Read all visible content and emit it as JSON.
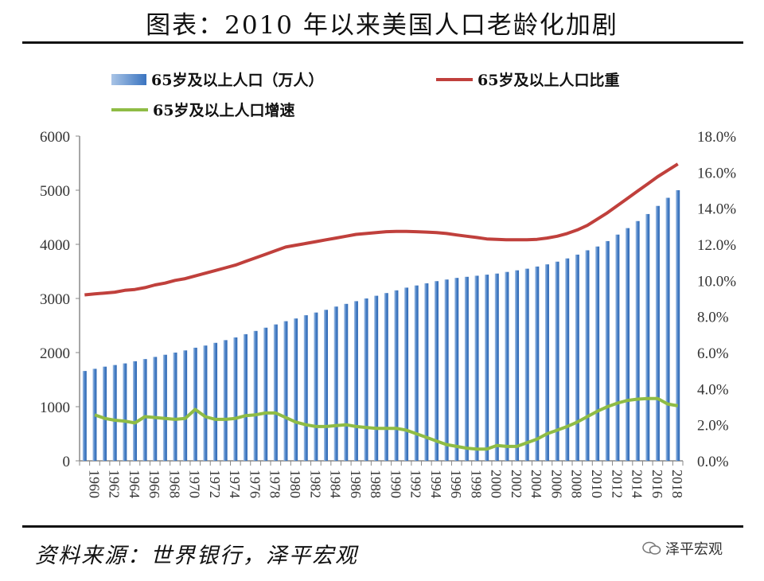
{
  "chart_data": {
    "type": "bar+line",
    "title": "图表：2010 年以来美国人口老龄化加剧",
    "legend": [
      "65岁及以上人口（万人）",
      "65岁及以上人口比重",
      "65岁及以上人口增速"
    ],
    "legend_placement": "top",
    "x": [
      1960,
      1961,
      1962,
      1963,
      1964,
      1965,
      1966,
      1967,
      1968,
      1969,
      1970,
      1971,
      1972,
      1973,
      1974,
      1975,
      1976,
      1977,
      1978,
      1979,
      1980,
      1981,
      1982,
      1983,
      1984,
      1985,
      1986,
      1987,
      1988,
      1989,
      1990,
      1991,
      1992,
      1993,
      1994,
      1995,
      1996,
      1997,
      1998,
      1999,
      2000,
      2001,
      2002,
      2003,
      2004,
      2005,
      2006,
      2007,
      2008,
      2009,
      2010,
      2011,
      2012,
      2013,
      2014,
      2015,
      2016,
      2017,
      2018,
      2019
    ],
    "x_tick_labels": [
      "1960",
      "1962",
      "1964",
      "1966",
      "1968",
      "1970",
      "1972",
      "1974",
      "1976",
      "1978",
      "1980",
      "1982",
      "1984",
      "1986",
      "1988",
      "1990",
      "1992",
      "1994",
      "1996",
      "1998",
      "2000",
      "2002",
      "2004",
      "2006",
      "2008",
      "2010",
      "2012",
      "2014",
      "2016",
      "2018"
    ],
    "left_axis": {
      "ylim": [
        0,
        6000
      ],
      "ticks": [
        "0",
        "1000",
        "2000",
        "3000",
        "4000",
        "5000",
        "6000"
      ]
    },
    "right_axis": {
      "ylim": [
        0,
        18
      ],
      "ticks": [
        "0.0%",
        "2.0%",
        "4.0%",
        "6.0%",
        "8.0%",
        "10.0%",
        "12.0%",
        "14.0%",
        "16.0%",
        "18.0%"
      ]
    },
    "series": [
      {
        "name": "65岁及以上人口（万人）",
        "type": "bar",
        "axis": "left",
        "color": "#4a82c8",
        "values": [
          1660,
          1700,
          1740,
          1770,
          1800,
          1840,
          1880,
          1920,
          1960,
          2000,
          2040,
          2090,
          2130,
          2180,
          2230,
          2280,
          2340,
          2400,
          2460,
          2520,
          2580,
          2630,
          2690,
          2740,
          2790,
          2850,
          2900,
          2950,
          3000,
          3050,
          3100,
          3150,
          3200,
          3240,
          3280,
          3320,
          3350,
          3380,
          3400,
          3420,
          3440,
          3460,
          3490,
          3520,
          3550,
          3590,
          3630,
          3680,
          3740,
          3810,
          3890,
          3960,
          4060,
          4180,
          4300,
          4430,
          4560,
          4710,
          4860,
          5000
        ]
      },
      {
        "name": "65岁及以上人口比重",
        "type": "line",
        "axis": "right",
        "color": "#c0403c",
        "values": [
          9.2,
          9.25,
          9.3,
          9.35,
          9.45,
          9.5,
          9.6,
          9.75,
          9.85,
          10.0,
          10.1,
          10.25,
          10.4,
          10.55,
          10.7,
          10.85,
          11.05,
          11.25,
          11.45,
          11.65,
          11.85,
          11.95,
          12.05,
          12.15,
          12.25,
          12.35,
          12.45,
          12.55,
          12.6,
          12.65,
          12.7,
          12.72,
          12.72,
          12.7,
          12.68,
          12.65,
          12.6,
          12.52,
          12.45,
          12.38,
          12.3,
          12.28,
          12.25,
          12.25,
          12.25,
          12.28,
          12.35,
          12.45,
          12.6,
          12.8,
          13.05,
          13.4,
          13.75,
          14.15,
          14.55,
          14.95,
          15.35,
          15.75,
          16.1,
          16.45
        ]
      },
      {
        "name": "65岁及以上人口增速",
        "type": "line",
        "axis": "right",
        "color": "#8fbc45",
        "values": [
          null,
          2.55,
          2.35,
          2.25,
          2.2,
          2.1,
          2.45,
          2.4,
          2.35,
          2.3,
          2.35,
          2.85,
          2.45,
          2.3,
          2.3,
          2.35,
          2.5,
          2.55,
          2.65,
          2.65,
          2.4,
          2.15,
          2.0,
          1.9,
          1.9,
          1.95,
          2.0,
          1.9,
          1.85,
          1.8,
          1.8,
          1.8,
          1.7,
          1.5,
          1.3,
          1.1,
          0.9,
          0.8,
          0.7,
          0.65,
          0.65,
          0.85,
          0.8,
          0.8,
          1.0,
          1.2,
          1.5,
          1.7,
          1.9,
          2.15,
          2.45,
          2.75,
          3.0,
          3.2,
          3.35,
          3.42,
          3.45,
          3.45,
          3.15,
          3.05
        ]
      }
    ]
  },
  "footer": {
    "source": "资料来源：世界银行，泽平宏观",
    "watermark": "泽平宏观"
  }
}
